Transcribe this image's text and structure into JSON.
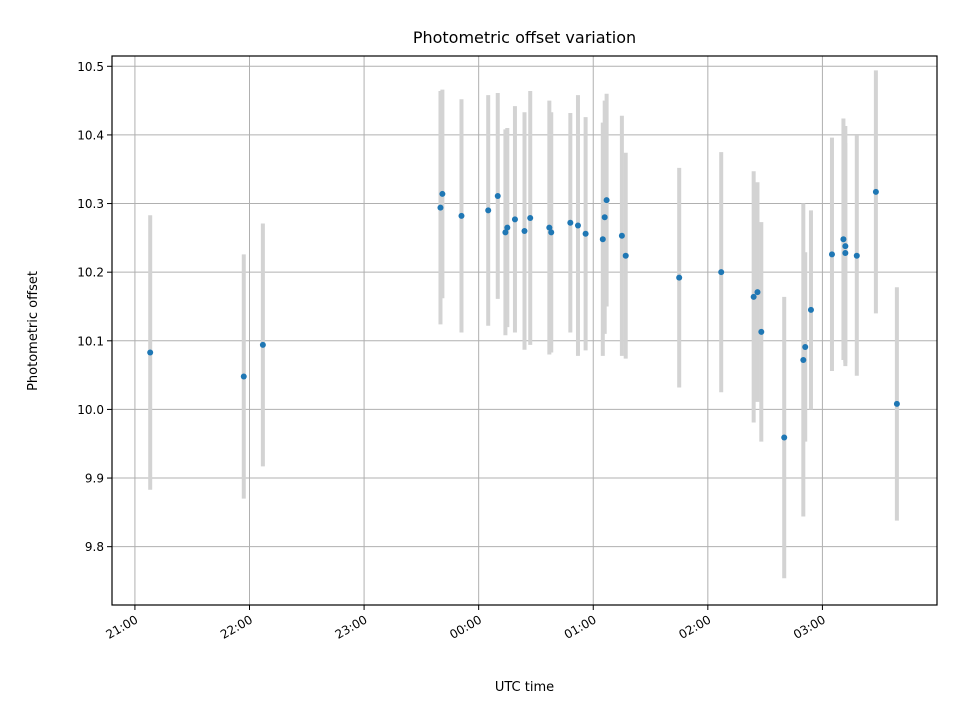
{
  "chart_data": {
    "type": "scatter",
    "title": "Photometric offset variation",
    "xlabel": "UTC time",
    "ylabel": "Photometric offset",
    "x_ticks": [
      "21:00",
      "22:00",
      "23:00",
      "00:00",
      "01:00",
      "02:00",
      "03:00"
    ],
    "y_ticks": [
      "9.8",
      "9.9",
      "10.0",
      "10.1",
      "10.2",
      "10.3",
      "10.4",
      "10.5"
    ],
    "x_range_hours": [
      20.8,
      28.0
    ],
    "ylim": [
      9.715,
      10.515
    ],
    "grid": true,
    "error_bars": true,
    "colors": {
      "points": "#1f77b4",
      "errorbars": "#d3d3d3",
      "grid": "#b0b0b0"
    },
    "points": [
      {
        "x": "21:08",
        "y": 10.083,
        "err": 0.2
      },
      {
        "x": "21:57",
        "y": 10.048,
        "err": 0.178
      },
      {
        "x": "22:07",
        "y": 10.094,
        "err": 0.177
      },
      {
        "x": "23:40",
        "y": 10.294,
        "err": 0.17
      },
      {
        "x": "23:41",
        "y": 10.314,
        "err": 0.152
      },
      {
        "x": "23:51",
        "y": 10.282,
        "err": 0.17
      },
      {
        "x": "00:05",
        "y": 10.29,
        "err": 0.168
      },
      {
        "x": "00:10",
        "y": 10.311,
        "err": 0.15
      },
      {
        "x": "00:14",
        "y": 10.258,
        "err": 0.15
      },
      {
        "x": "00:15",
        "y": 10.265,
        "err": 0.145
      },
      {
        "x": "00:19",
        "y": 10.277,
        "err": 0.165
      },
      {
        "x": "00:24",
        "y": 10.26,
        "err": 0.173
      },
      {
        "x": "00:27",
        "y": 10.279,
        "err": 0.185
      },
      {
        "x": "00:37",
        "y": 10.265,
        "err": 0.185
      },
      {
        "x": "00:38",
        "y": 10.258,
        "err": 0.175
      },
      {
        "x": "00:48",
        "y": 10.272,
        "err": 0.16
      },
      {
        "x": "00:52",
        "y": 10.268,
        "err": 0.19
      },
      {
        "x": "00:56",
        "y": 10.256,
        "err": 0.17
      },
      {
        "x": "01:05",
        "y": 10.248,
        "err": 0.17
      },
      {
        "x": "01:06",
        "y": 10.28,
        "err": 0.17
      },
      {
        "x": "01:07",
        "y": 10.305,
        "err": 0.155
      },
      {
        "x": "01:15",
        "y": 10.253,
        "err": 0.175
      },
      {
        "x": "01:17",
        "y": 10.224,
        "err": 0.15
      },
      {
        "x": "01:45",
        "y": 10.192,
        "err": 0.16
      },
      {
        "x": "02:07",
        "y": 10.2,
        "err": 0.175
      },
      {
        "x": "02:24",
        "y": 10.164,
        "err": 0.183
      },
      {
        "x": "02:26",
        "y": 10.171,
        "err": 0.16
      },
      {
        "x": "02:28",
        "y": 10.113,
        "err": 0.16
      },
      {
        "x": "02:40",
        "y": 9.959,
        "err": 0.205
      },
      {
        "x": "02:50",
        "y": 10.072,
        "err": 0.228
      },
      {
        "x": "02:51",
        "y": 10.091,
        "err": 0.138
      },
      {
        "x": "02:54",
        "y": 10.145,
        "err": 0.145
      },
      {
        "x": "03:05",
        "y": 10.226,
        "err": 0.17
      },
      {
        "x": "03:11",
        "y": 10.248,
        "err": 0.176
      },
      {
        "x": "03:12",
        "y": 10.238,
        "err": 0.175
      },
      {
        "x": "03:12",
        "y": 10.228,
        "err": 0.16
      },
      {
        "x": "03:18",
        "y": 10.224,
        "err": 0.175
      },
      {
        "x": "03:28",
        "y": 10.317,
        "err": 0.177
      },
      {
        "x": "03:39",
        "y": 10.008,
        "err": 0.17
      }
    ]
  }
}
